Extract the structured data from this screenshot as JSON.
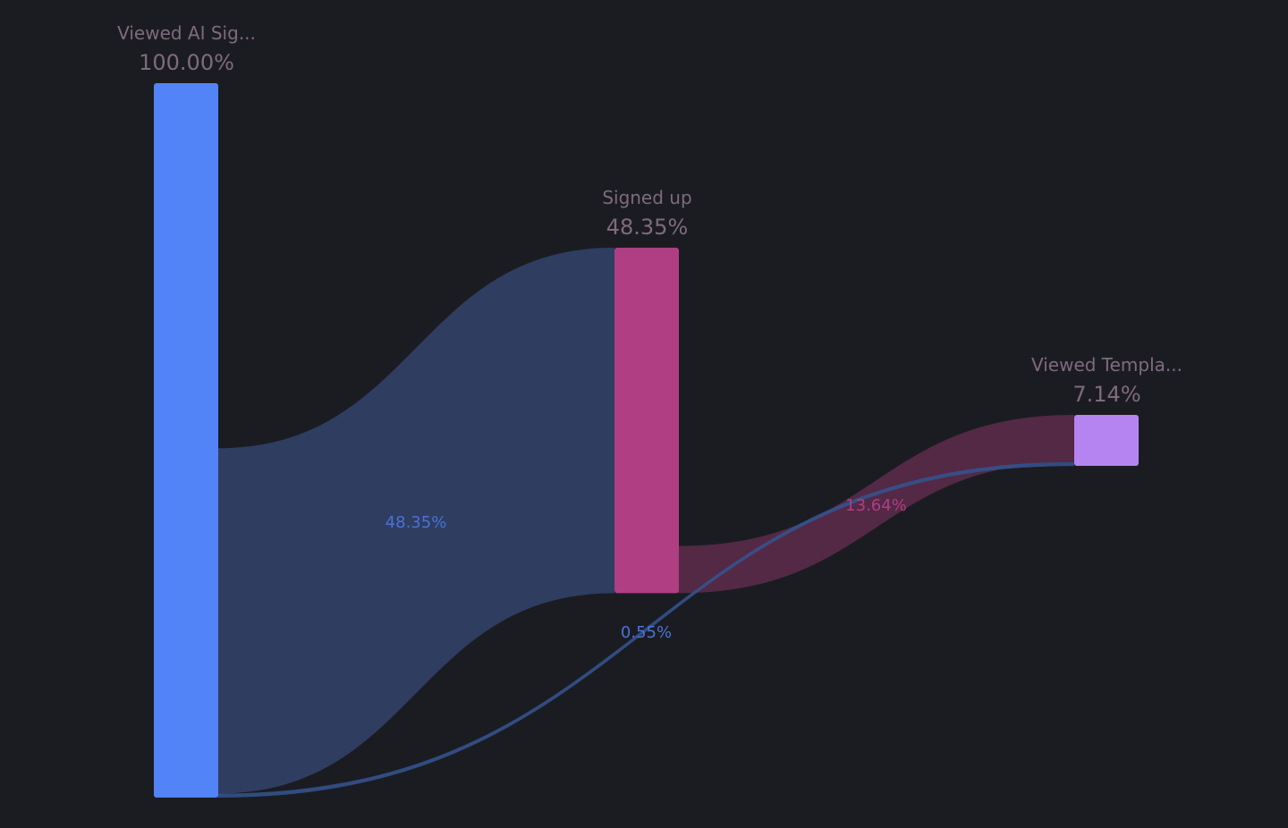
{
  "chart_data": {
    "type": "sankey",
    "nodes": [
      {
        "name": "Viewed AI Sig...",
        "value_label": "100.00%",
        "value": 100,
        "color": "#5283f7"
      },
      {
        "name": "Signed up",
        "value_label": "48.35%",
        "value": 48.35,
        "color": "#b03e82"
      },
      {
        "name": "Viewed Templa...",
        "value_label": "7.14%",
        "value": 7.14,
        "color": "#b584f0"
      }
    ],
    "links": [
      {
        "source": 0,
        "target": 1,
        "label": "48.35%",
        "percent_of_source": 48.35,
        "color": "#2e3d60",
        "label_color": "#4a72d8"
      },
      {
        "source": 1,
        "target": 2,
        "label": "13.64%",
        "percent_of_source": 13.64,
        "color": "#532945",
        "label_color": "#b03e82"
      },
      {
        "source": 0,
        "target": 2,
        "label": "0.55%",
        "percent_of_source": 0.55,
        "color": "#34528c",
        "label_color": "#4a72d8"
      }
    ],
    "background": "#1b1c21"
  }
}
